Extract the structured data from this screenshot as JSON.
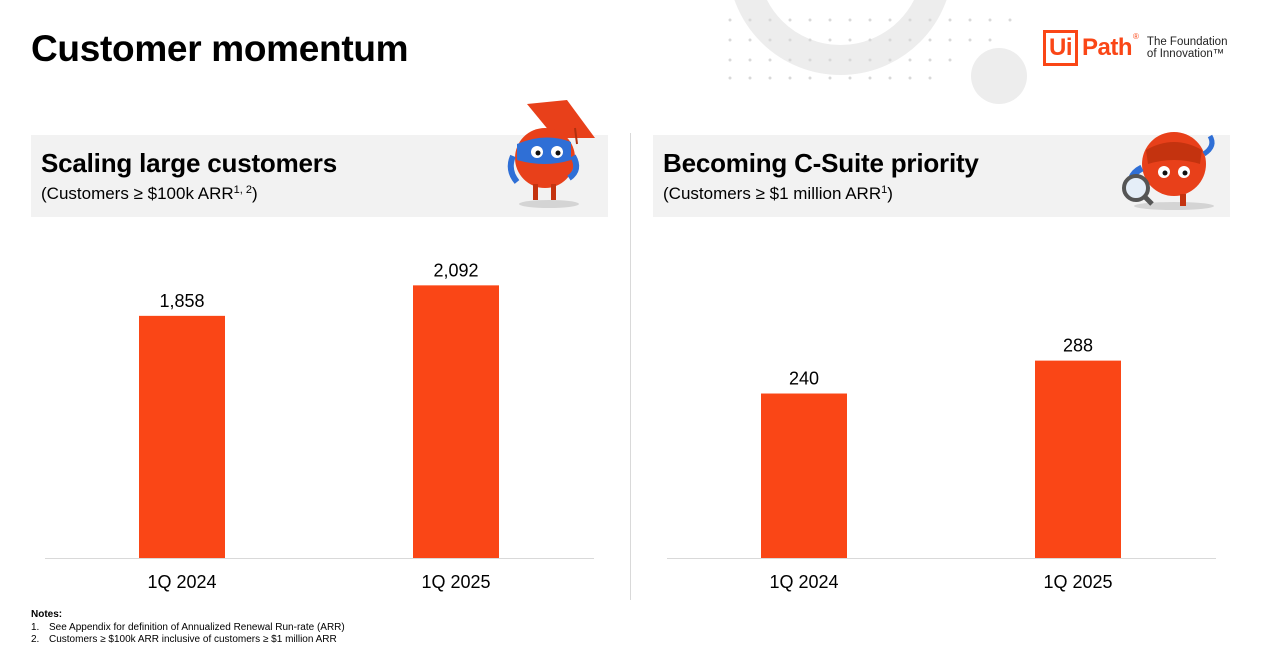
{
  "page_title": "Customer momentum",
  "logo": {
    "brand_box": "Ui",
    "brand_rest": "Path",
    "reg_mark": "®",
    "tagline_line1": "The Foundation",
    "tagline_line2": "of Innovation™"
  },
  "colors": {
    "bar": "#fa4616",
    "accent": "#fa4616",
    "header_bg": "#f2f2f2"
  },
  "panels": [
    {
      "title": "Scaling large customers",
      "subtitle": "(Customers ≥ $100k ARR",
      "subtitle_sup": "1, 2",
      "subtitle_end": ")"
    },
    {
      "title": "Becoming C-Suite priority",
      "subtitle": "(Customers ≥ $1 million ARR",
      "subtitle_sup": "1",
      "subtitle_end": ")"
    }
  ],
  "chart_data": [
    {
      "type": "bar",
      "title": "Scaling large customers",
      "categories": [
        "1Q 2024",
        "1Q 2025"
      ],
      "values": [
        1858,
        2092
      ],
      "value_labels": [
        "1,858",
        "2,092"
      ],
      "ylim": [
        0,
        2440
      ],
      "grid": false,
      "axes_visible": false
    },
    {
      "type": "bar",
      "title": "Becoming C-Suite priority",
      "categories": [
        "1Q 2024",
        "1Q 2025"
      ],
      "values": [
        240,
        288
      ],
      "value_labels": [
        "240",
        "288"
      ],
      "ylim": [
        0,
        464
      ],
      "grid": false,
      "axes_visible": false
    }
  ],
  "notes": {
    "title": "Notes:",
    "items": [
      {
        "num": "1.",
        "text": "See Appendix for definition of Annualized Renewal Run-rate (ARR)"
      },
      {
        "num": "2.",
        "text": "Customers ≥ $100k ARR inclusive of customers ≥ $1 million ARR"
      }
    ]
  }
}
